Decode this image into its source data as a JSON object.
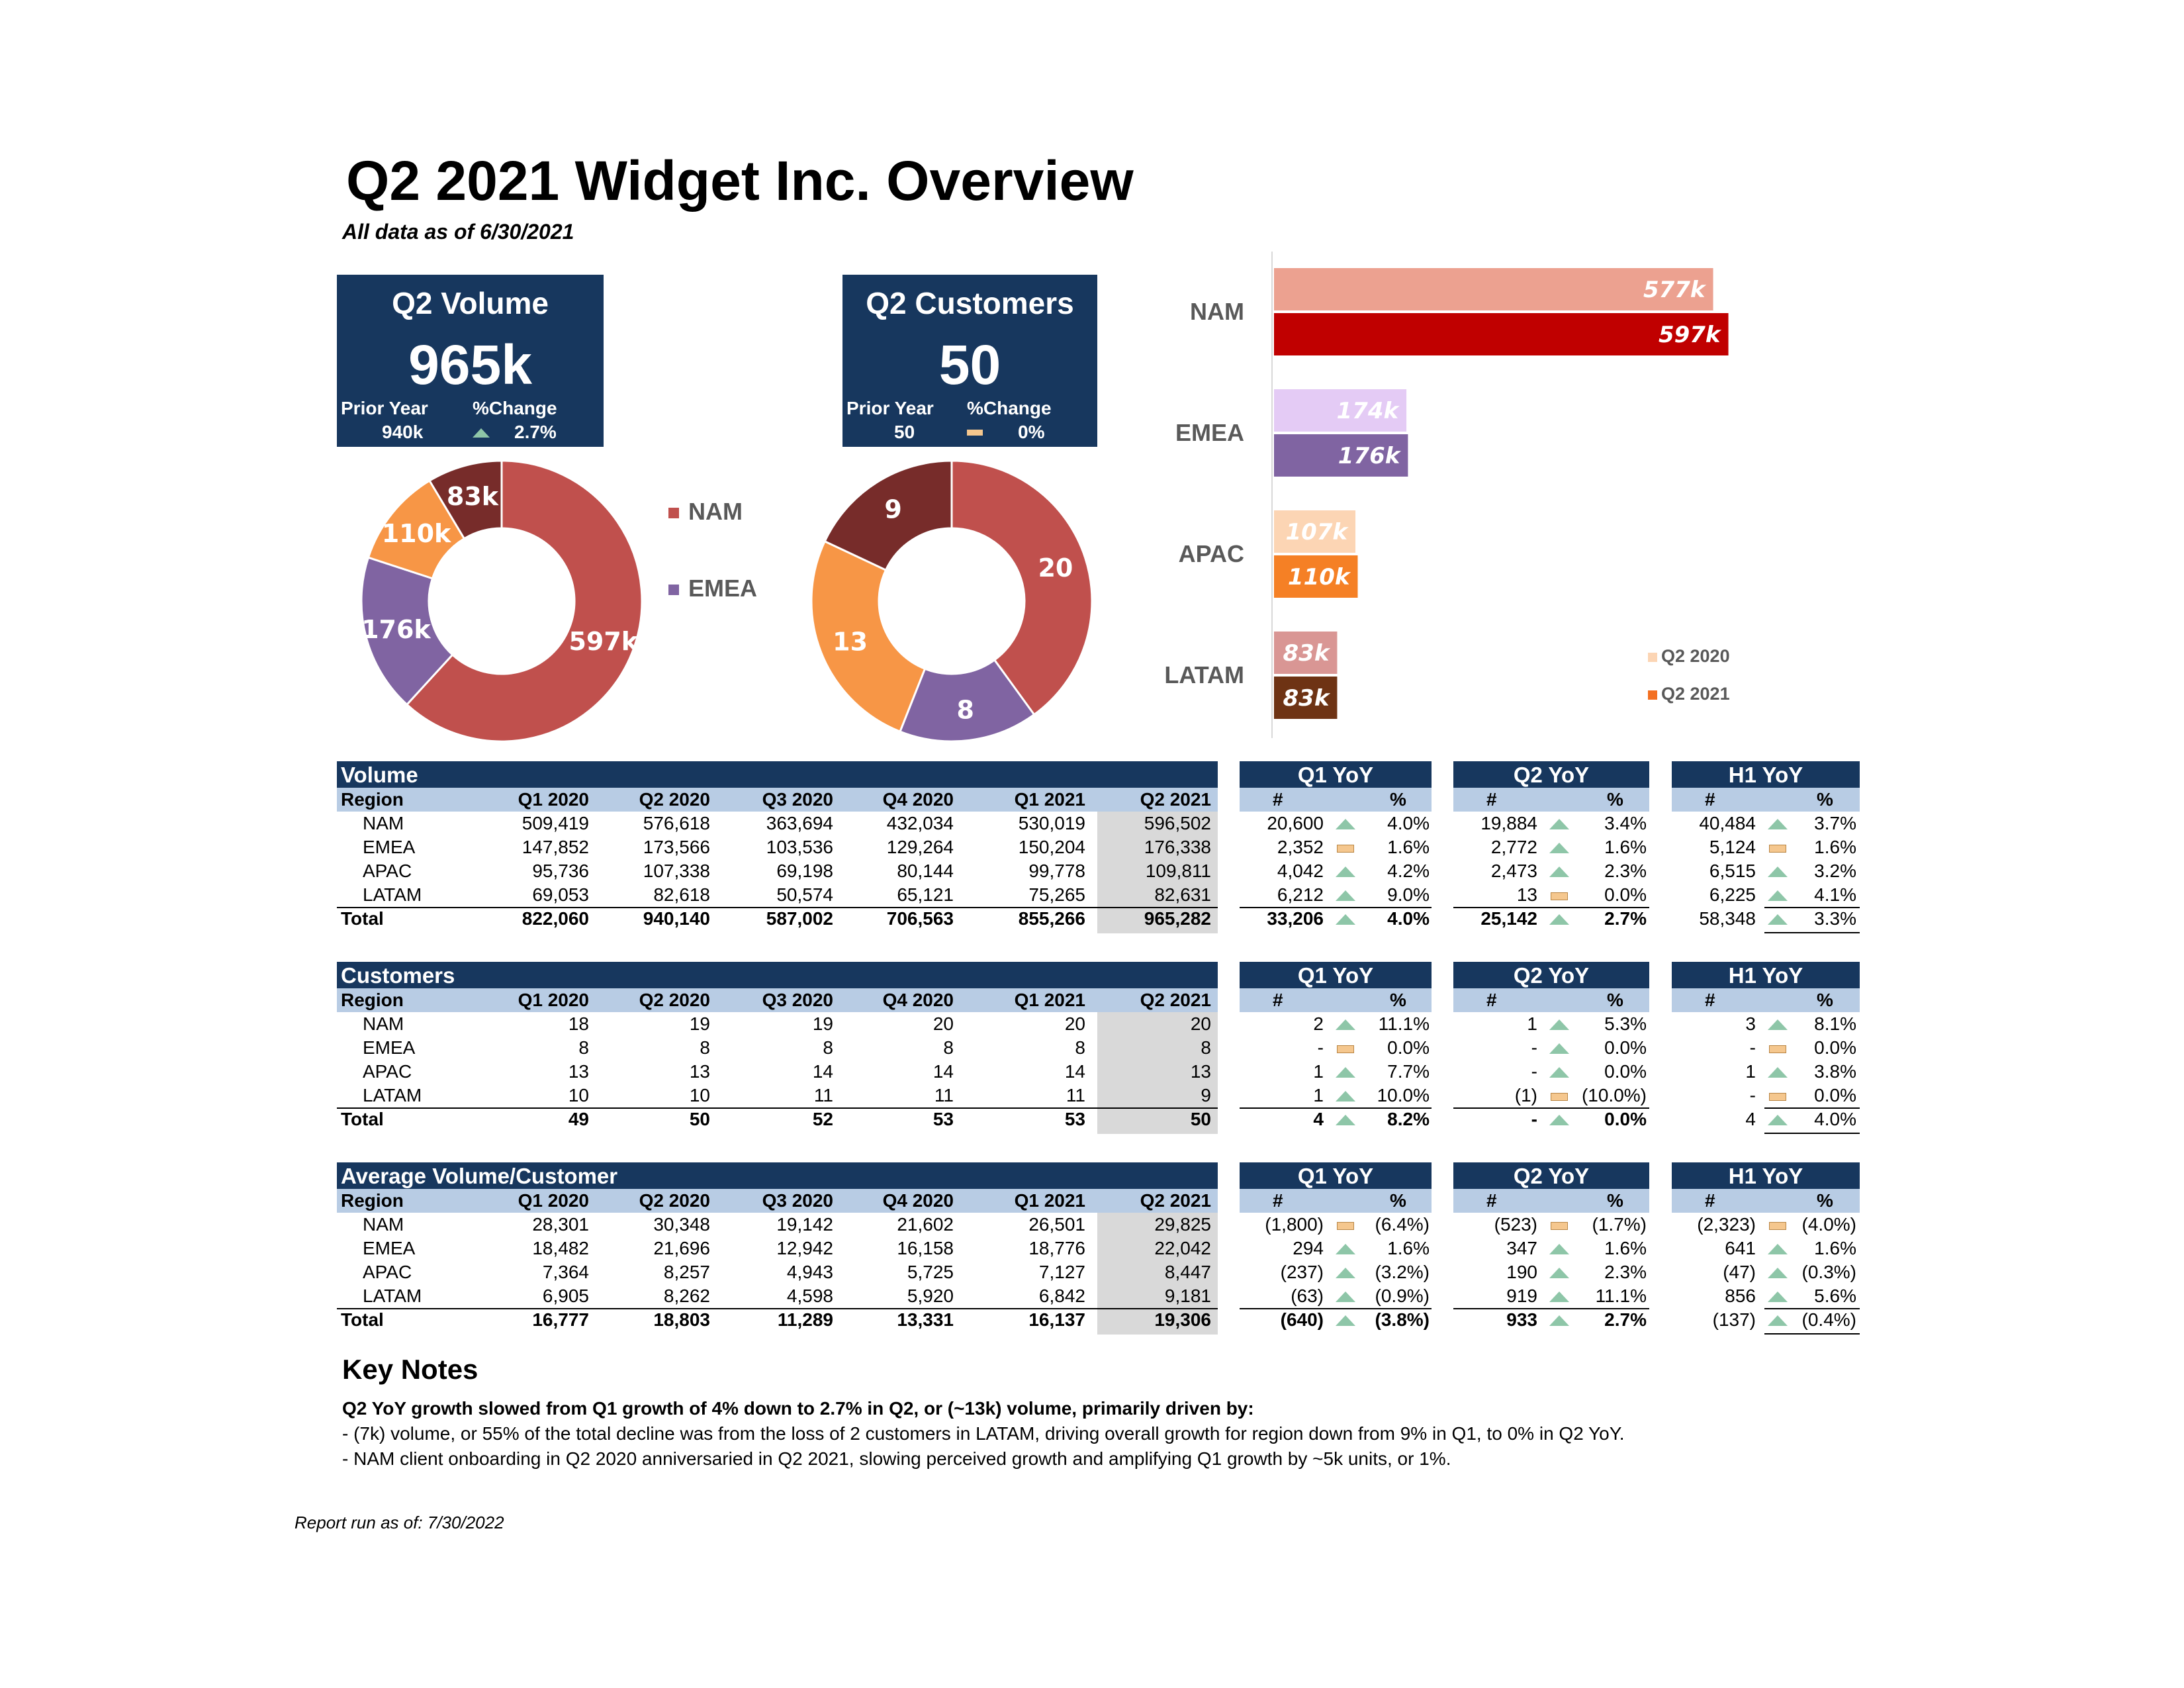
{
  "header": {
    "title": "Q2 2021 Widget Inc. Overview",
    "subtitle": "All data as of 6/30/2021"
  },
  "kpi_volume": {
    "title": "Q2 Volume",
    "value": "965k",
    "prior_label": "Prior Year",
    "prior_value": "940k",
    "change_label": "%Change",
    "change_value": "2.7%",
    "change_icon": "up-triangle-icon"
  },
  "kpi_customers": {
    "title": "Q2 Customers",
    "value": "50",
    "prior_label": "Prior Year",
    "prior_value": "50",
    "change_label": "%Change",
    "change_value": "0%",
    "change_icon": "flat-dash-icon"
  },
  "donut_legend": [
    {
      "label": "NAM",
      "color": "#c0504d"
    },
    {
      "label": "EMEA",
      "color": "#8064a2"
    }
  ],
  "chart_data": [
    {
      "type": "pie",
      "variant": "donut",
      "categories": [
        "NAM",
        "EMEA",
        "APAC",
        "LATAM"
      ],
      "values": [
        597,
        176,
        110,
        83
      ],
      "labels": [
        "597k",
        "176k",
        "110k",
        "83k"
      ],
      "colors": [
        "#c0504d",
        "#8064a2",
        "#f79646",
        "#772c2a"
      ]
    },
    {
      "type": "pie",
      "variant": "donut",
      "categories": [
        "NAM",
        "EMEA",
        "APAC",
        "LATAM"
      ],
      "values": [
        20,
        8,
        13,
        9
      ],
      "labels": [
        "20",
        "8",
        "13",
        "9"
      ],
      "colors": [
        "#c0504d",
        "#8064a2",
        "#f79646",
        "#772c2a"
      ]
    },
    {
      "type": "bar",
      "orientation": "horizontal",
      "categories": [
        "NAM",
        "EMEA",
        "APAC",
        "LATAM"
      ],
      "series": [
        {
          "name": "Q2 2020",
          "values": [
            577,
            174,
            107,
            83
          ],
          "labels": [
            "577k",
            "174k",
            "107k",
            "83k"
          ],
          "colors": [
            "#eca190",
            "#e4cbf5",
            "#fcd5b4",
            "#d99694"
          ]
        },
        {
          "name": "Q2 2021",
          "values": [
            597,
            176,
            110,
            83
          ],
          "labels": [
            "597k",
            "176k",
            "110k",
            "83k"
          ],
          "colors": [
            "#c00000",
            "#8064a2",
            "#f58025",
            "#6e3314"
          ]
        }
      ],
      "legend": [
        {
          "label": "Q2 2020",
          "color": "#fcd5b4"
        },
        {
          "label": "Q2 2021",
          "color": "#f36f21"
        }
      ],
      "xlim": [
        0,
        700
      ],
      "legend_position": "right"
    }
  ],
  "tables": [
    {
      "title": "Volume",
      "columns": [
        "Region",
        "Q1 2020",
        "Q2 2020",
        "Q3 2020",
        "Q4 2020",
        "Q1 2021",
        "Q2 2021"
      ],
      "rows": [
        [
          "NAM",
          "509,419",
          "576,618",
          "363,694",
          "432,034",
          "530,019",
          "596,502"
        ],
        [
          "EMEA",
          "147,852",
          "173,566",
          "103,536",
          "129,264",
          "150,204",
          "176,338"
        ],
        [
          "APAC",
          "95,736",
          "107,338",
          "69,198",
          "80,144",
          "99,778",
          "109,811"
        ],
        [
          "LATAM",
          "69,053",
          "82,618",
          "50,574",
          "65,121",
          "75,265",
          "82,631"
        ]
      ],
      "total": [
        "Total",
        "822,060",
        "940,140",
        "587,002",
        "706,563",
        "855,266",
        "965,282"
      ],
      "yoy": [
        {
          "title": "Q1 YoY",
          "num_label": "#",
          "pct_label": "%",
          "rows": [
            [
              "20,600",
              "up",
              "4.0%"
            ],
            [
              "2,352",
              "flat",
              "1.6%"
            ],
            [
              "4,042",
              "up",
              "4.2%"
            ],
            [
              "6,212",
              "up",
              "9.0%"
            ]
          ],
          "total": [
            "33,206",
            "up",
            "4.0%"
          ],
          "total_bold": true
        },
        {
          "title": "Q2 YoY",
          "num_label": "#",
          "pct_label": "%",
          "rows": [
            [
              "19,884",
              "up",
              "3.4%"
            ],
            [
              "2,772",
              "up",
              "1.6%"
            ],
            [
              "2,473",
              "up",
              "2.3%"
            ],
            [
              "13",
              "flat",
              "0.0%"
            ]
          ],
          "total": [
            "25,142",
            "up",
            "2.7%"
          ],
          "total_bold": true
        },
        {
          "title": "H1 YoY",
          "num_label": "#",
          "pct_label": "%",
          "rows": [
            [
              "40,484",
              "up",
              "3.7%"
            ],
            [
              "5,124",
              "flat",
              "1.6%"
            ],
            [
              "6,515",
              "up",
              "3.2%"
            ],
            [
              "6,225",
              "up",
              "4.1%"
            ]
          ],
          "total": [
            "58,348",
            "up",
            "3.3%"
          ],
          "total_bold": false
        }
      ]
    },
    {
      "title": "Customers",
      "columns": [
        "Region",
        "Q1 2020",
        "Q2 2020",
        "Q3 2020",
        "Q4 2020",
        "Q1 2021",
        "Q2 2021"
      ],
      "rows": [
        [
          "NAM",
          "18",
          "19",
          "19",
          "20",
          "20",
          "20"
        ],
        [
          "EMEA",
          "8",
          "8",
          "8",
          "8",
          "8",
          "8"
        ],
        [
          "APAC",
          "13",
          "13",
          "14",
          "14",
          "14",
          "13"
        ],
        [
          "LATAM",
          "10",
          "10",
          "11",
          "11",
          "11",
          "9"
        ]
      ],
      "total": [
        "Total",
        "49",
        "50",
        "52",
        "53",
        "53",
        "50"
      ],
      "yoy": [
        {
          "title": "Q1 YoY",
          "num_label": "#",
          "pct_label": "%",
          "rows": [
            [
              "2",
              "up",
              "11.1%"
            ],
            [
              "-",
              "flat",
              "0.0%"
            ],
            [
              "1",
              "up",
              "7.7%"
            ],
            [
              "1",
              "up",
              "10.0%"
            ]
          ],
          "total": [
            "4",
            "up",
            "8.2%"
          ],
          "total_bold": true
        },
        {
          "title": "Q2 YoY",
          "num_label": "#",
          "pct_label": "%",
          "rows": [
            [
              "1",
              "up",
              "5.3%"
            ],
            [
              "-",
              "up",
              "0.0%"
            ],
            [
              "-",
              "up",
              "0.0%"
            ],
            [
              "(1)",
              "flat",
              "(10.0%)"
            ]
          ],
          "total": [
            "-",
            "up",
            "0.0%"
          ],
          "total_bold": true
        },
        {
          "title": "H1 YoY",
          "num_label": "#",
          "pct_label": "%",
          "rows": [
            [
              "3",
              "up",
              "8.1%"
            ],
            [
              "-",
              "flat",
              "0.0%"
            ],
            [
              "1",
              "up",
              "3.8%"
            ],
            [
              "-",
              "flat",
              "0.0%"
            ]
          ],
          "total": [
            "4",
            "up",
            "4.0%"
          ],
          "total_bold": false
        }
      ]
    },
    {
      "title": "Average Volume/Customer",
      "columns": [
        "Region",
        "Q1 2020",
        "Q2 2020",
        "Q3 2020",
        "Q4 2020",
        "Q1 2021",
        "Q2 2021"
      ],
      "rows": [
        [
          "NAM",
          "28,301",
          "30,348",
          "19,142",
          "21,602",
          "26,501",
          "29,825"
        ],
        [
          "EMEA",
          "18,482",
          "21,696",
          "12,942",
          "16,158",
          "18,776",
          "22,042"
        ],
        [
          "APAC",
          "7,364",
          "8,257",
          "4,943",
          "5,725",
          "7,127",
          "8,447"
        ],
        [
          "LATAM",
          "6,905",
          "8,262",
          "4,598",
          "5,920",
          "6,842",
          "9,181"
        ]
      ],
      "total": [
        "Total",
        "16,777",
        "18,803",
        "11,289",
        "13,331",
        "16,137",
        "19,306"
      ],
      "yoy": [
        {
          "title": "Q1 YoY",
          "num_label": "#",
          "pct_label": "%",
          "rows": [
            [
              "(1,800)",
              "flat",
              "(6.4%)"
            ],
            [
              "294",
              "up",
              "1.6%"
            ],
            [
              "(237)",
              "up",
              "(3.2%)"
            ],
            [
              "(63)",
              "up",
              "(0.9%)"
            ]
          ],
          "total": [
            "(640)",
            "up",
            "(3.8%)"
          ],
          "total_bold": true
        },
        {
          "title": "Q2 YoY",
          "num_label": "#",
          "pct_label": "%",
          "rows": [
            [
              "(523)",
              "flat",
              "(1.7%)"
            ],
            [
              "347",
              "up",
              "1.6%"
            ],
            [
              "190",
              "up",
              "2.3%"
            ],
            [
              "919",
              "up",
              "11.1%"
            ]
          ],
          "total": [
            "933",
            "up",
            "2.7%"
          ],
          "total_bold": true
        },
        {
          "title": "H1 YoY",
          "num_label": "#",
          "pct_label": "%",
          "rows": [
            [
              "(2,323)",
              "flat",
              "(4.0%)"
            ],
            [
              "641",
              "up",
              "1.6%"
            ],
            [
              "(47)",
              "up",
              "(0.3%)"
            ],
            [
              "856",
              "up",
              "5.6%"
            ]
          ],
          "total": [
            "(137)",
            "up",
            "(0.4%)"
          ],
          "total_bold": false
        }
      ]
    }
  ],
  "notes": {
    "title": "Key Notes",
    "lead": "Q2 YoY growth slowed from Q1 growth of 4% down to 2.7% in Q2, or (~13k) volume, primarily driven by:",
    "bullets": [
      "- (7k) volume, or 55% of the total decline was from the loss of 2 customers in LATAM, driving overall growth for region down from 9% in Q1, to 0% in Q2 YoY.",
      "- NAM client onboarding in Q2 2020 anniversaried in Q2 2021, slowing perceived growth and amplifying Q1 growth by ~5k units, or 1%."
    ]
  },
  "footer": "Report run as of: 7/30/2022"
}
